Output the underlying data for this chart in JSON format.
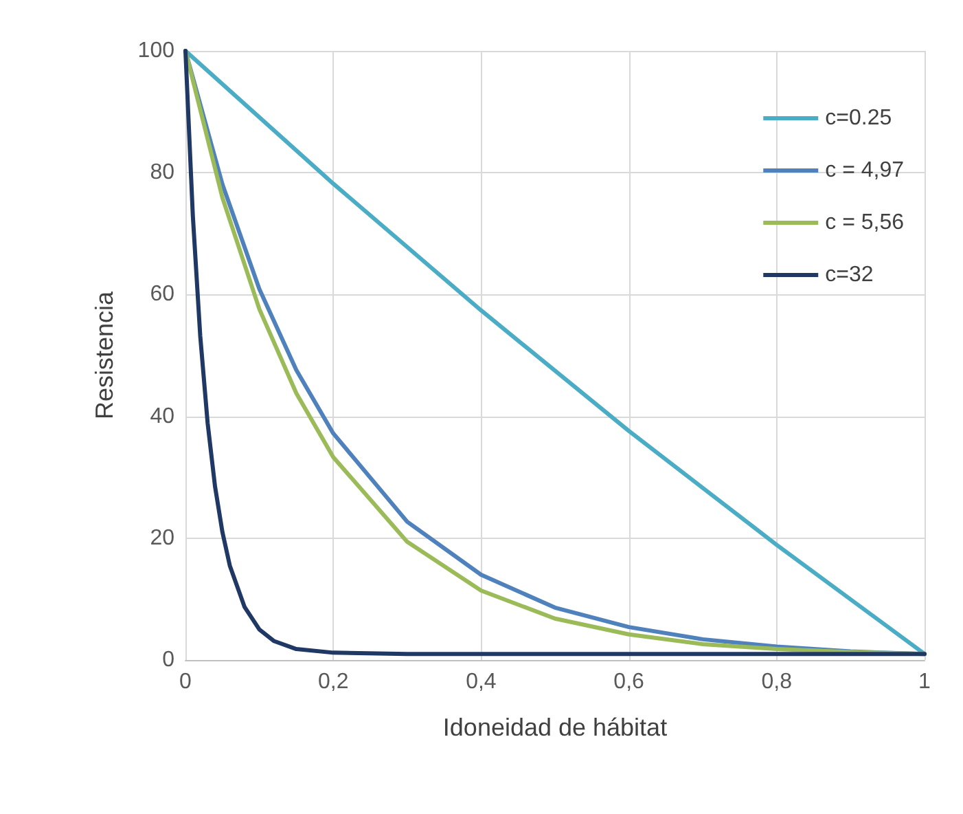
{
  "chart_data": {
    "type": "line",
    "xlabel": "Idoneidad de hábitat",
    "ylabel": "Resistencia",
    "xlim": [
      0,
      1
    ],
    "xticks": [
      0,
      {
        "value": 0.2,
        "label": "0,2"
      },
      {
        "value": 0.4,
        "label": "0,4"
      },
      {
        "value": 0.6,
        "label": "0,6"
      },
      {
        "value": 0.8,
        "label": "0,8"
      },
      1
    ],
    "ylim": [
      0,
      100
    ],
    "yticks": [
      0,
      20,
      40,
      60,
      80,
      100
    ],
    "grid": true,
    "legend": "top right",
    "marker": "none",
    "line_style": "solid",
    "series": [
      {
        "name": "c=0.25",
        "color": "#4bacc6",
        "x": [
          0,
          0.2,
          0.4,
          0.6,
          0.8,
          1
        ],
        "values": [
          100,
          78.2,
          57.4,
          37.6,
          18.9,
          1
        ]
      },
      {
        "name": "c = 4,97",
        "color": "#4f81bd",
        "x": [
          0,
          0.05,
          0.1,
          0.15,
          0.2,
          0.3,
          0.4,
          0.5,
          0.6,
          0.7,
          0.8,
          0.9,
          1
        ],
        "values": [
          100,
          78.1,
          60.9,
          47.6,
          37.2,
          22.7,
          14.0,
          8.6,
          5.4,
          3.4,
          2.2,
          1.4,
          1
        ]
      },
      {
        "name": "c = 5,56",
        "color": "#9bbb59",
        "x": [
          0,
          0.05,
          0.1,
          0.15,
          0.2,
          0.3,
          0.4,
          0.5,
          0.6,
          0.7,
          0.8,
          0.9,
          1
        ],
        "values": [
          100,
          75.9,
          57.6,
          43.8,
          33.3,
          19.4,
          11.4,
          6.8,
          4.2,
          2.6,
          1.8,
          1.3,
          1
        ]
      },
      {
        "name": "c=32",
        "color": "#1f3864",
        "x": [
          0,
          0.01,
          0.02,
          0.03,
          0.04,
          0.05,
          0.06,
          0.08,
          0.1,
          0.12,
          0.15,
          0.2,
          0.3,
          1
        ],
        "values": [
          100,
          72.9,
          53.2,
          38.9,
          28.5,
          21.0,
          15.5,
          8.7,
          5.0,
          3.1,
          1.8,
          1.2,
          1.0,
          1
        ]
      }
    ]
  }
}
